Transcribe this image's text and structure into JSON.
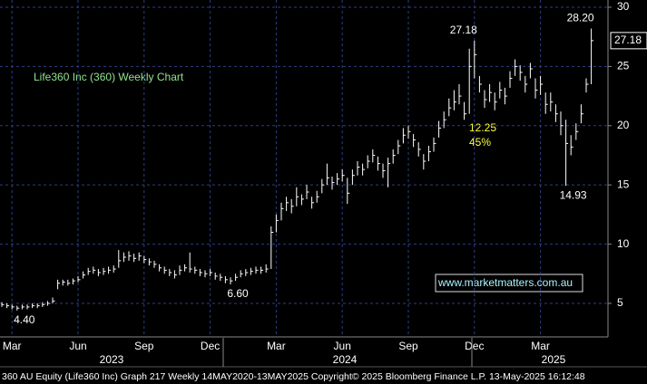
{
  "chart_data": {
    "type": "ohlc",
    "title": "Life360 Inc (360) Weekly Chart",
    "footer": "360 AU Equity (Life360 Inc) Graph 217  Weekly 14MAY2020-13MAY2025  Copyright© 2025 Bloomberg Finance L.P.  13-May-2025 16:12:48",
    "link": "www.marketmatters.com.au",
    "annotations": [
      "12.25",
      "45%"
    ],
    "years": [
      "2023",
      "2024",
      "2025"
    ],
    "ylim": [
      2.17,
      30.61
    ],
    "yticks": [
      5,
      10,
      15,
      20,
      25,
      30
    ],
    "grid": true,
    "last_price": {
      "value": 27.18,
      "label": "27.18"
    },
    "categories": [
      null,
      null,
      "Mar",
      null,
      null,
      null,
      null,
      null,
      null,
      null,
      null,
      null,
      null,
      null,
      null,
      "Jun",
      null,
      null,
      null,
      null,
      null,
      null,
      null,
      null,
      null,
      null,
      null,
      null,
      "Sep",
      null,
      null,
      null,
      null,
      null,
      null,
      null,
      null,
      null,
      null,
      null,
      null,
      "Dec",
      null,
      null,
      null,
      null,
      null,
      null,
      null,
      null,
      null,
      null,
      null,
      null,
      "Mar",
      null,
      null,
      null,
      null,
      null,
      null,
      null,
      null,
      null,
      null,
      null,
      null,
      "Jun",
      null,
      null,
      null,
      null,
      null,
      null,
      null,
      null,
      null,
      null,
      null,
      null,
      "Sep",
      null,
      null,
      null,
      null,
      null,
      null,
      null,
      null,
      null,
      null,
      null,
      null,
      "Dec",
      null,
      null,
      null,
      null,
      null,
      null,
      null,
      null,
      null,
      null,
      null,
      null,
      "Mar",
      null,
      null,
      null,
      null,
      null,
      null,
      null,
      null,
      null,
      null
    ],
    "close": [
      4.9,
      4.8,
      4.7,
      4.6,
      4.7,
      4.7,
      4.8,
      4.8,
      4.9,
      5.0,
      5.2,
      6.7,
      6.8,
      6.7,
      6.9,
      7.0,
      7.4,
      7.7,
      7.8,
      7.6,
      7.7,
      7.8,
      7.9,
      8.6,
      8.9,
      9.0,
      8.8,
      9.0,
      8.7,
      8.5,
      8.3,
      8.0,
      7.8,
      7.6,
      7.4,
      7.8,
      8.0,
      7.9,
      7.8,
      7.6,
      7.5,
      7.6,
      7.3,
      7.2,
      7.0,
      6.9,
      7.2,
      7.5,
      7.6,
      7.7,
      7.8,
      7.8,
      7.9,
      11.0,
      12.0,
      13.0,
      13.5,
      13.2,
      14.0,
      13.8,
      14.4,
      13.5,
      14.0,
      15.0,
      15.6,
      15.2,
      15.5,
      15.8,
      14.3,
      15.8,
      16.5,
      16.3,
      17.0,
      17.5,
      16.8,
      16.2,
      16.8,
      17.5,
      18.3,
      19.2,
      19.5,
      18.8,
      18.0,
      17.0,
      17.8,
      18.5,
      19.8,
      20.5,
      21.5,
      22.0,
      22.5,
      21.0,
      25.0,
      26.0,
      23.5,
      22.2,
      22.8,
      22.0,
      23.0,
      22.5,
      24.0,
      25.0,
      24.5,
      23.5,
      24.8,
      23.0,
      23.5,
      21.8,
      22.0,
      21.0,
      20.0,
      18.5,
      18.2,
      19.5,
      21.0,
      23.5,
      27.18
    ],
    "high": [
      5.1,
      5.0,
      4.9,
      4.8,
      4.9,
      4.9,
      5.0,
      5.0,
      5.1,
      5.2,
      5.5,
      7.0,
      7.0,
      7.0,
      7.1,
      7.3,
      7.7,
      8.0,
      8.1,
      7.9,
      8.0,
      8.1,
      8.2,
      9.5,
      9.3,
      9.4,
      9.2,
      9.3,
      9.0,
      8.8,
      8.6,
      8.3,
      8.1,
      7.9,
      7.8,
      8.2,
      8.3,
      9.3,
      8.1,
      7.9,
      7.8,
      7.9,
      7.6,
      7.5,
      7.3,
      7.2,
      7.5,
      7.8,
      7.9,
      8.0,
      8.1,
      8.1,
      8.3,
      11.5,
      12.5,
      13.5,
      14.0,
      13.8,
      14.8,
      14.2,
      15.0,
      14.0,
      14.5,
      15.5,
      16.8,
      15.7,
      16.0,
      16.3,
      15.6,
      16.3,
      17.0,
      16.8,
      17.5,
      18.0,
      17.4,
      16.8,
      17.3,
      18.0,
      18.8,
      19.8,
      20.0,
      19.3,
      18.6,
      17.6,
      18.3,
      19.0,
      20.4,
      21.2,
      22.3,
      23.0,
      23.5,
      22.0,
      26.5,
      27.18,
      24.2,
      23.0,
      23.5,
      22.8,
      23.7,
      23.2,
      24.6,
      25.6,
      25.1,
      24.2,
      25.3,
      24.0,
      24.2,
      22.8,
      22.8,
      21.8,
      21.2,
      20.5,
      19.2,
      20.2,
      21.8,
      24.0,
      28.2
    ],
    "low": [
      4.7,
      4.6,
      4.5,
      4.4,
      4.5,
      4.5,
      4.6,
      4.6,
      4.7,
      4.8,
      5.0,
      6.2,
      6.5,
      6.5,
      6.6,
      6.8,
      7.1,
      7.4,
      7.5,
      7.3,
      7.4,
      7.5,
      7.6,
      8.0,
      8.5,
      8.6,
      8.5,
      8.6,
      8.4,
      8.2,
      8.0,
      7.7,
      7.5,
      7.3,
      7.1,
      7.4,
      7.7,
      7.6,
      7.5,
      7.3,
      7.2,
      7.3,
      7.0,
      6.9,
      6.7,
      6.6,
      6.9,
      7.2,
      7.3,
      7.4,
      7.5,
      7.5,
      7.6,
      7.9,
      11.0,
      12.0,
      12.8,
      12.6,
      13.2,
      13.3,
      13.8,
      13.0,
      13.5,
      14.3,
      15.0,
      14.6,
      15.0,
      15.3,
      13.4,
      15.0,
      15.8,
      15.8,
      16.4,
      16.9,
      16.2,
      15.6,
      14.8,
      16.8,
      17.6,
      18.5,
      18.9,
      18.2,
      17.4,
      16.3,
      17.0,
      17.8,
      19.0,
      19.8,
      20.8,
      21.3,
      21.8,
      20.5,
      21.0,
      24.0,
      22.8,
      21.5,
      22.0,
      21.3,
      22.3,
      21.8,
      23.2,
      24.2,
      23.8,
      22.8,
      24.0,
      22.3,
      22.6,
      21.0,
      21.2,
      20.3,
      19.2,
      14.93,
      17.5,
      18.8,
      20.2,
      22.8,
      23.5
    ],
    "high_labels": [
      null,
      null,
      null,
      null,
      null,
      null,
      null,
      null,
      null,
      null,
      null,
      null,
      null,
      null,
      null,
      null,
      null,
      null,
      null,
      null,
      null,
      null,
      null,
      null,
      null,
      null,
      null,
      null,
      null,
      null,
      null,
      null,
      null,
      null,
      null,
      null,
      null,
      null,
      null,
      null,
      null,
      null,
      null,
      null,
      null,
      null,
      null,
      null,
      null,
      null,
      null,
      null,
      null,
      null,
      null,
      null,
      null,
      null,
      null,
      null,
      null,
      null,
      null,
      null,
      null,
      null,
      null,
      null,
      null,
      null,
      null,
      null,
      null,
      null,
      null,
      null,
      null,
      null,
      null,
      null,
      null,
      null,
      null,
      null,
      null,
      null,
      null,
      null,
      null,
      null,
      null,
      null,
      null,
      "27.18",
      null,
      null,
      null,
      null,
      null,
      null,
      null,
      null,
      null,
      null,
      null,
      null,
      null,
      null,
      null,
      null,
      null,
      null,
      null,
      null,
      null,
      null,
      "28.20"
    ],
    "low_labels": [
      null,
      null,
      null,
      "4.40",
      null,
      null,
      null,
      null,
      null,
      null,
      null,
      null,
      null,
      null,
      null,
      null,
      null,
      null,
      null,
      null,
      null,
      null,
      null,
      null,
      null,
      null,
      null,
      null,
      null,
      null,
      null,
      null,
      null,
      null,
      null,
      null,
      null,
      null,
      null,
      null,
      null,
      null,
      null,
      null,
      null,
      "6.60",
      null,
      null,
      null,
      null,
      null,
      null,
      null,
      null,
      null,
      null,
      null,
      null,
      null,
      null,
      null,
      null,
      null,
      null,
      null,
      null,
      null,
      null,
      null,
      null,
      null,
      null,
      null,
      null,
      null,
      null,
      null,
      null,
      null,
      null,
      null,
      null,
      null,
      null,
      null,
      null,
      null,
      null,
      null,
      null,
      null,
      null,
      null,
      null,
      null,
      null,
      null,
      null,
      null,
      null,
      null,
      null,
      null,
      null,
      null,
      null,
      null,
      null,
      null,
      null,
      null,
      "14.93",
      null,
      null,
      null,
      null,
      null
    ]
  }
}
